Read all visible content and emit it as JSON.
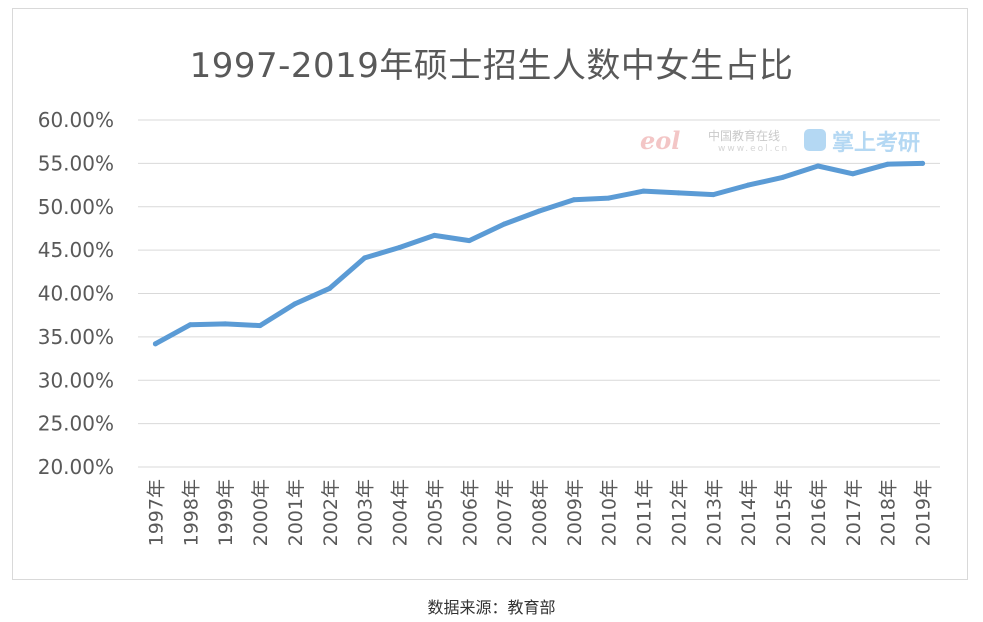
{
  "chart_data": {
    "type": "line",
    "title": "1997-2019年硕士招生人数中女生占比",
    "categories": [
      "1997年",
      "1998年",
      "1999年",
      "2000年",
      "2001年",
      "2002年",
      "2003年",
      "2004年",
      "2005年",
      "2006年",
      "2007年",
      "2008年",
      "2009年",
      "2010年",
      "2011年",
      "2012年",
      "2013年",
      "2014年",
      "2015年",
      "2016年",
      "2017年",
      "2018年",
      "2019年"
    ],
    "series": [
      {
        "values": [
          34.2,
          36.4,
          36.5,
          36.3,
          38.8,
          40.6,
          44.1,
          45.3,
          46.7,
          46.1,
          48.0,
          49.5,
          50.8,
          51.0,
          51.8,
          51.6,
          51.4,
          52.5,
          53.4,
          54.7,
          53.8,
          54.9,
          55.0
        ],
        "color": "#5b9bd5"
      }
    ],
    "y_ticks": [
      "20.00%",
      "25.00%",
      "30.00%",
      "35.00%",
      "40.00%",
      "45.00%",
      "50.00%",
      "55.00%",
      "60.00%"
    ],
    "ylim": [
      20,
      60
    ],
    "grid": true,
    "legend": "none"
  },
  "watermark": {
    "eol": "eol",
    "cn_name": "中国教育在线",
    "url": "www.eol.cn",
    "brand": "掌上考研"
  },
  "source_note": "数据来源：教育部"
}
